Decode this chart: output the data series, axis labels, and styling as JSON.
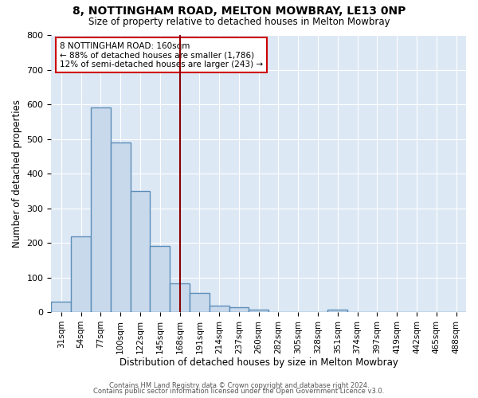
{
  "title": "8, NOTTINGHAM ROAD, MELTON MOWBRAY, LE13 0NP",
  "subtitle": "Size of property relative to detached houses in Melton Mowbray",
  "xlabel": "Distribution of detached houses by size in Melton Mowbray",
  "ylabel": "Number of detached properties",
  "bar_labels": [
    "31sqm",
    "54sqm",
    "77sqm",
    "100sqm",
    "122sqm",
    "145sqm",
    "168sqm",
    "191sqm",
    "214sqm",
    "237sqm",
    "260sqm",
    "282sqm",
    "305sqm",
    "328sqm",
    "351sqm",
    "374sqm",
    "397sqm",
    "419sqm",
    "442sqm",
    "465sqm",
    "488sqm"
  ],
  "bar_values": [
    31,
    218,
    590,
    490,
    350,
    190,
    83,
    55,
    18,
    13,
    8,
    0,
    0,
    0,
    8,
    0,
    0,
    0,
    0,
    0,
    0
  ],
  "bar_color": "#c9d9ec",
  "bar_edge_color": "#5b8db8",
  "bar_edge_width": 1.0,
  "background_color": "#dde8f5",
  "fig_background_color": "#ffffff",
  "grid_color": "#ffffff",
  "ref_line_x": 6,
  "ref_line_color": "#8b0000",
  "annotation_line1": "8 NOTTINGHAM ROAD: 160sqm",
  "annotation_line2": "← 88% of detached houses are smaller (1,786)",
  "annotation_line3": "12% of semi-detached houses are larger (243) →",
  "annotation_box_color": "#ffffff",
  "annotation_box_edge_color": "#cc0000",
  "ylim": [
    0,
    800
  ],
  "yticks": [
    0,
    100,
    200,
    300,
    400,
    500,
    600,
    700,
    800
  ],
  "footer_line1": "Contains HM Land Registry data © Crown copyright and database right 2024.",
  "footer_line2": "Contains public sector information licensed under the Open Government Licence v3.0."
}
